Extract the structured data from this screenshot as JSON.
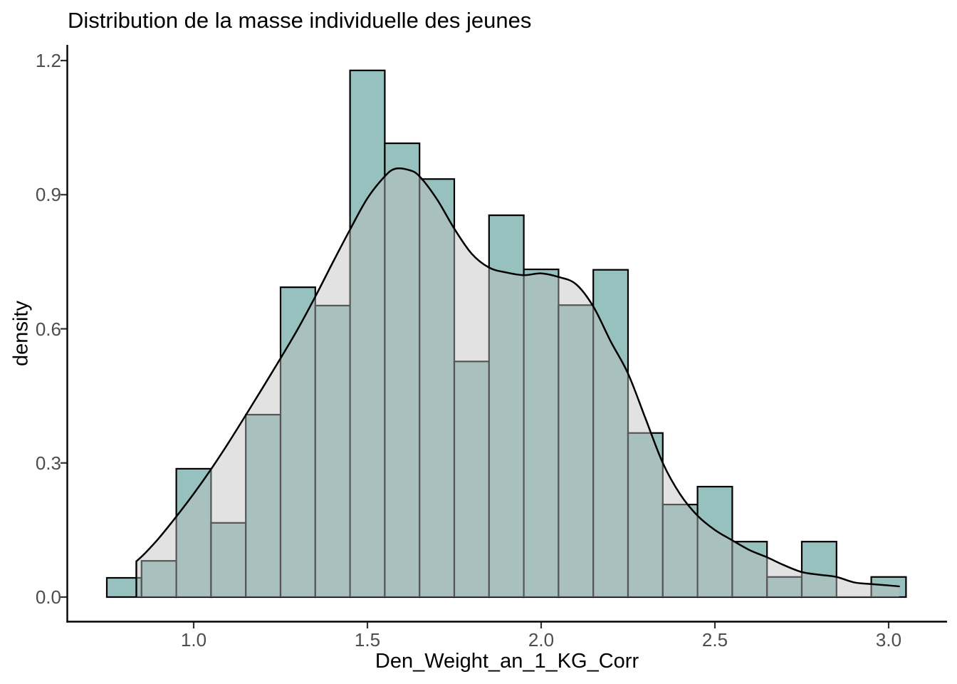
{
  "figure": {
    "title": "Distribution de la masse individuelle des jeunes",
    "xlabel": "Den_Weight_an_1_KG_Corr",
    "ylabel": "density"
  },
  "chart_data": {
    "type": "histogram_with_density_overlay",
    "title": "Distribution de la masse individuelle des jeunes",
    "xlabel": "Den_Weight_an_1_KG_Corr",
    "ylabel": "density",
    "grid": false,
    "legend": "none",
    "xlim": [
      0.64,
      3.19
    ],
    "ylim": [
      -0.055,
      1.235
    ],
    "x_ticks": {
      "values": [
        1.0,
        1.5,
        2.0,
        2.5,
        3.0
      ],
      "labels": [
        "1.0",
        "1.5",
        "2.0",
        "2.5",
        "3.0"
      ]
    },
    "y_ticks": {
      "values": [
        0.0,
        0.3,
        0.6,
        0.9,
        1.2
      ],
      "labels": [
        "0.0",
        "0.3",
        "0.6",
        "0.9",
        "1.2"
      ]
    },
    "histogram": {
      "bin_width": 0.1,
      "bin_centers": [
        0.8,
        0.9,
        1.0,
        1.1,
        1.2,
        1.3,
        1.4,
        1.5,
        1.6,
        1.7,
        1.8,
        1.9,
        2.0,
        2.1,
        2.2,
        2.3,
        2.4,
        2.5,
        2.6,
        2.7,
        2.8,
        2.9,
        3.0
      ],
      "densities": [
        0.043,
        0.081,
        0.287,
        0.166,
        0.408,
        0.693,
        0.652,
        1.178,
        1.015,
        0.935,
        0.527,
        0.854,
        0.733,
        0.653,
        0.732,
        0.367,
        0.207,
        0.247,
        0.124,
        0.045,
        0.124,
        0.0,
        0.045
      ]
    },
    "density_curve": {
      "points": [
        [
          0.835,
          0.08
        ],
        [
          0.86,
          0.098
        ],
        [
          0.9,
          0.132
        ],
        [
          0.95,
          0.18
        ],
        [
          1.0,
          0.231
        ],
        [
          1.05,
          0.286
        ],
        [
          1.1,
          0.345
        ],
        [
          1.15,
          0.407
        ],
        [
          1.2,
          0.47
        ],
        [
          1.25,
          0.534
        ],
        [
          1.3,
          0.6
        ],
        [
          1.35,
          0.672
        ],
        [
          1.4,
          0.748
        ],
        [
          1.45,
          0.822
        ],
        [
          1.5,
          0.892
        ],
        [
          1.55,
          0.941
        ],
        [
          1.58,
          0.958
        ],
        [
          1.62,
          0.955
        ],
        [
          1.65,
          0.941
        ],
        [
          1.7,
          0.89
        ],
        [
          1.75,
          0.824
        ],
        [
          1.8,
          0.768
        ],
        [
          1.85,
          0.737
        ],
        [
          1.9,
          0.726
        ],
        [
          1.95,
          0.72
        ],
        [
          2.0,
          0.724
        ],
        [
          2.05,
          0.716
        ],
        [
          2.1,
          0.7
        ],
        [
          2.15,
          0.65
        ],
        [
          2.2,
          0.572
        ],
        [
          2.25,
          0.5
        ],
        [
          2.3,
          0.4
        ],
        [
          2.35,
          0.3
        ],
        [
          2.4,
          0.23
        ],
        [
          2.45,
          0.182
        ],
        [
          2.5,
          0.15
        ],
        [
          2.55,
          0.127
        ],
        [
          2.6,
          0.105
        ],
        [
          2.65,
          0.089
        ],
        [
          2.7,
          0.071
        ],
        [
          2.75,
          0.056
        ],
        [
          2.8,
          0.05
        ],
        [
          2.85,
          0.045
        ],
        [
          2.9,
          0.033
        ],
        [
          2.95,
          0.029
        ],
        [
          3.0,
          0.026
        ],
        [
          3.03,
          0.024
        ]
      ]
    },
    "colors": {
      "background": "#FFFFFF",
      "bar_fill": "#96C1BE",
      "bar_stroke": "#000000",
      "density_fill": "#BEBEBE",
      "density_fill_opacity": 0.45,
      "density_stroke": "#000000",
      "axis_line": "#000000",
      "tick_mark": "#333333",
      "tick_text": "#4D4D4D",
      "title_text": "#000000"
    }
  }
}
